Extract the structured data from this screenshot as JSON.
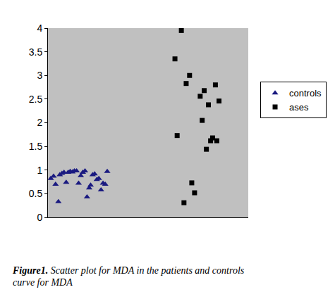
{
  "chart_data": {
    "type": "scatter",
    "caption": "Figure1.  Scatter plot for MDA in the patients and controls curve for MDA",
    "series": [
      {
        "name": "controls",
        "color": "#1a1a80",
        "marker": "triangle-up",
        "x": [
          1.4,
          2.8,
          3.8,
          5.2,
          5.9,
          7.0,
          8.0,
          9.1,
          10.1,
          11.1,
          12.2,
          13.2,
          14.3,
          15.3,
          16.4,
          17.4,
          18.5,
          19.5,
          20.6,
          21.3,
          22.3,
          23.3,
          24.4,
          25.4,
          26.5,
          27.5,
          28.6,
          29.6
        ],
        "values": [
          0.82,
          0.87,
          0.7,
          0.33,
          0.9,
          0.93,
          0.95,
          0.74,
          0.95,
          0.97,
          0.96,
          0.98,
          0.98,
          0.72,
          0.88,
          0.95,
          0.98,
          0.43,
          0.62,
          0.68,
          0.9,
          0.92,
          0.8,
          0.82,
          0.58,
          0.72,
          0.7,
          0.97
        ]
      },
      {
        "name": "ases",
        "color": "#000000",
        "marker": "square",
        "x": [
          64.5,
          63.4,
          66.6,
          67.9,
          69.0,
          70.7,
          71.8,
          73.2,
          76.0,
          77.0,
          78.0,
          79.1,
          80.1,
          81.2,
          82.2,
          83.6,
          84.3,
          85.4
        ],
        "values": [
          1.73,
          3.35,
          3.95,
          0.31,
          2.83,
          3.0,
          0.73,
          0.52,
          2.56,
          2.05,
          2.68,
          1.44,
          2.38,
          1.62,
          1.68,
          2.8,
          1.62,
          2.46
        ]
      }
    ],
    "xlim": [
      0,
      100
    ],
    "ylim": [
      0,
      4
    ],
    "yticks": [
      0,
      0.5,
      1,
      1.5,
      2,
      2.5,
      3,
      3.5,
      4
    ],
    "tick_labels": "y",
    "grid": false,
    "legend": "right"
  }
}
